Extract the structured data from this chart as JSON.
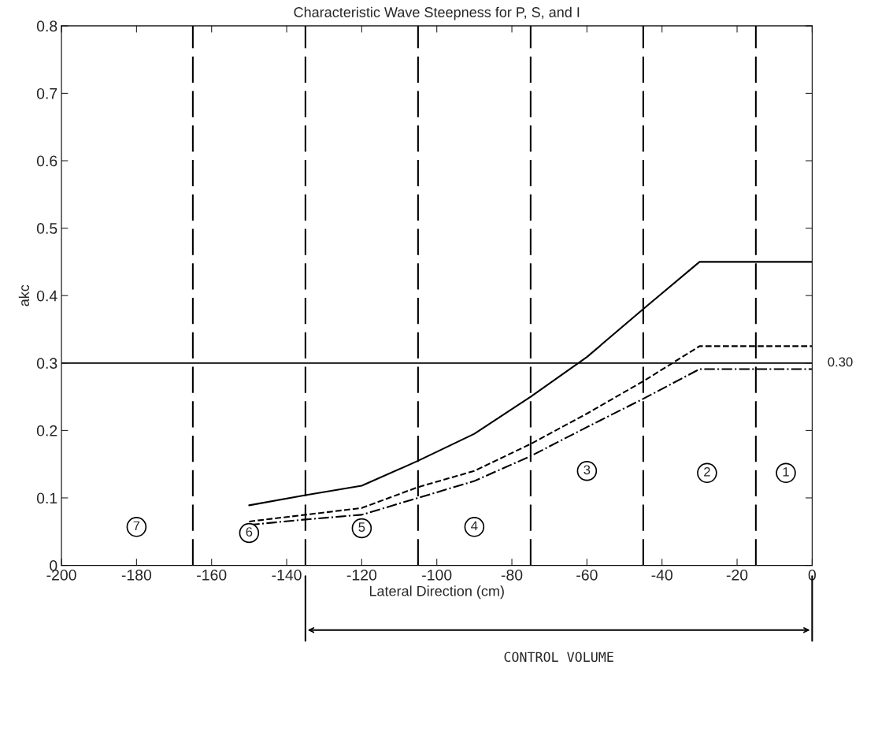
{
  "chart_data": {
    "type": "line",
    "title": "Characteristic Wave Steepness for P, S, and I",
    "xlabel": "Lateral Direction (cm)",
    "ylabel": "akc",
    "xlim": [
      -200,
      0
    ],
    "xticks": [
      -200,
      -180,
      -160,
      -140,
      -120,
      -100,
      -80,
      -60,
      -40,
      -20,
      0
    ],
    "ylim": [
      0,
      0.8
    ],
    "yticks": [
      0,
      0.1,
      0.2,
      0.3,
      0.4,
      0.5,
      0.6,
      0.7,
      0.8
    ],
    "grid": false,
    "legend": false,
    "series": [
      {
        "color": "#000000",
        "line_style": "solid",
        "x": [
          -150,
          -135,
          -120,
          -105,
          -90,
          -75,
          -60,
          -45,
          -30,
          0
        ],
        "values": [
          0.089,
          0.104,
          0.118,
          0.155,
          0.195,
          0.25,
          0.309,
          0.38,
          0.45,
          0.45
        ]
      },
      {
        "color": "#000000",
        "line_style": "dashed",
        "x": [
          -150,
          -135,
          -120,
          -105,
          -90,
          -75,
          -60,
          -45,
          -30,
          0
        ],
        "values": [
          0.065,
          0.075,
          0.085,
          0.116,
          0.14,
          0.18,
          0.225,
          0.273,
          0.325,
          0.325
        ]
      },
      {
        "color": "#000000",
        "line_style": "dashdot",
        "x": [
          -150,
          -135,
          -120,
          -105,
          -90,
          -75,
          -60,
          -45,
          -30,
          0
        ],
        "values": [
          0.06,
          0.068,
          0.075,
          0.1,
          0.125,
          0.162,
          0.205,
          0.247,
          0.291,
          0.291
        ]
      }
    ],
    "ref_lines": [
      {
        "axis": "y",
        "value": 0.3,
        "label": "0.30",
        "color": "#000000",
        "line_style": "solid"
      },
      {
        "axis": "x",
        "value": -165,
        "color": "#000000",
        "line_style": "dashed"
      },
      {
        "axis": "x",
        "value": -135,
        "color": "#000000",
        "line_style": "dashed"
      },
      {
        "axis": "x",
        "value": -105,
        "color": "#000000",
        "line_style": "dashed"
      },
      {
        "axis": "x",
        "value": -75,
        "color": "#000000",
        "line_style": "dashed"
      },
      {
        "axis": "x",
        "value": -45,
        "color": "#000000",
        "line_style": "dashed"
      },
      {
        "axis": "x",
        "value": -15,
        "color": "#000000",
        "line_style": "dashed"
      }
    ],
    "annotations": [
      "CONTROL VOLUME",
      {
        "text": "7",
        "x": -180,
        "y": 0.057
      },
      {
        "text": "6",
        "x": -150,
        "y": 0.048
      },
      {
        "text": "5",
        "x": -120,
        "y": 0.055
      },
      {
        "text": "4",
        "x": -90,
        "y": 0.057
      },
      {
        "text": "3",
        "x": -60,
        "y": 0.14
      },
      {
        "text": "2",
        "x": -28,
        "y": 0.137
      },
      {
        "text": "1",
        "x": -7,
        "y": 0.137
      }
    ]
  }
}
